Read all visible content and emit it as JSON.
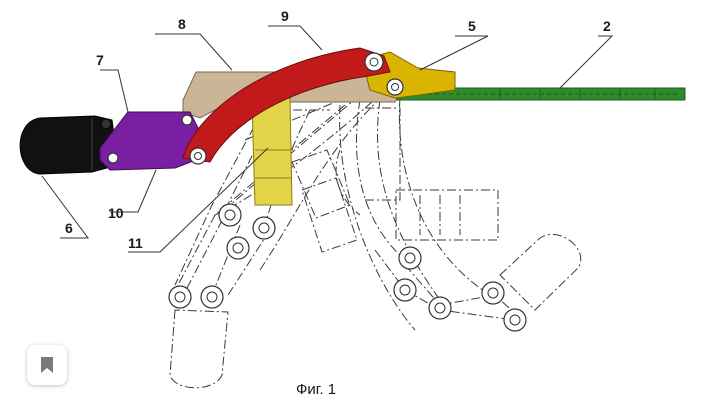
{
  "figure": {
    "caption": "Фиг. 1",
    "labels": {
      "l2": "2",
      "l5": "5",
      "l6": "6",
      "l7": "7",
      "l8": "8",
      "l9": "9",
      "l10": "10",
      "l11": "11"
    },
    "colors": {
      "part_2_green": "#2e8b2e",
      "part_5_gold": "#d9b400",
      "part_8_tan": "#cbb596",
      "part_9_red": "#c21a1a",
      "part_10_purple": "#7a1fa2",
      "part_6_black": "#111111",
      "part_11_yellow": "#e3d44a"
    }
  },
  "ui": {
    "bookmark_icon": "bookmark-icon"
  }
}
